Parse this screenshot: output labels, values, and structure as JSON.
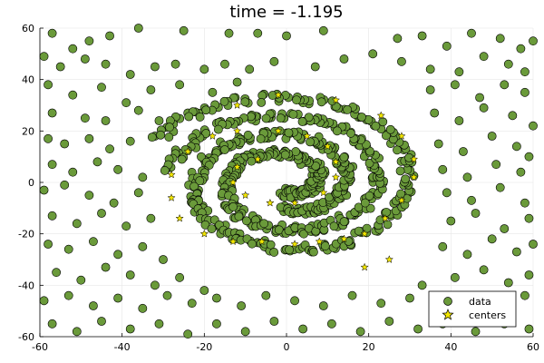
{
  "chart_data": {
    "type": "scatter",
    "title": "time =  -1.195",
    "xlabel": "",
    "ylabel": "",
    "xlim": [
      -60,
      60
    ],
    "ylim": [
      -60,
      60
    ],
    "x_ticks": [
      -60,
      -40,
      -20,
      0,
      20,
      40,
      60
    ],
    "y_ticks": [
      -60,
      -40,
      -20,
      0,
      20,
      40,
      60
    ],
    "grid": true,
    "legend_position": "bottom-right",
    "colors": {
      "data": "#6a9a3a",
      "centers": "#f2e600"
    },
    "series": [
      {
        "name": "data",
        "marker": "circle",
        "noise_points": [
          [
            -57,
            58
          ],
          [
            -52,
            52
          ],
          [
            -48,
            55
          ],
          [
            -43,
            57
          ],
          [
            -36,
            60
          ],
          [
            -25,
            59
          ],
          [
            -14,
            58
          ],
          [
            -7,
            58
          ],
          [
            0,
            57
          ],
          [
            9,
            59
          ],
          [
            27,
            56
          ],
          [
            33,
            57
          ],
          [
            39,
            53
          ],
          [
            45,
            58
          ],
          [
            52,
            56
          ],
          [
            57,
            52
          ],
          [
            60,
            55
          ],
          [
            -59,
            49
          ],
          [
            -55,
            45
          ],
          [
            -49,
            48
          ],
          [
            -44,
            46
          ],
          [
            -38,
            42
          ],
          [
            -32,
            45
          ],
          [
            -27,
            46
          ],
          [
            -20,
            44
          ],
          [
            -15,
            46
          ],
          [
            -9,
            44
          ],
          [
            -3,
            47
          ],
          [
            7,
            45
          ],
          [
            14,
            48
          ],
          [
            21,
            50
          ],
          [
            28,
            47
          ],
          [
            35,
            44
          ],
          [
            42,
            43
          ],
          [
            48,
            49
          ],
          [
            54,
            46
          ],
          [
            58,
            43
          ],
          [
            -58,
            38
          ],
          [
            -52,
            34
          ],
          [
            -45,
            37
          ],
          [
            -39,
            31
          ],
          [
            -33,
            36
          ],
          [
            -26,
            38
          ],
          [
            -18,
            35
          ],
          [
            -12,
            39
          ],
          [
            35,
            36
          ],
          [
            41,
            38
          ],
          [
            47,
            33
          ],
          [
            53,
            38
          ],
          [
            58,
            35
          ],
          [
            -57,
            27
          ],
          [
            -49,
            25
          ],
          [
            -44,
            24
          ],
          [
            -36,
            28
          ],
          [
            -31,
            24
          ],
          [
            -24,
            27
          ],
          [
            -17,
            23
          ],
          [
            36,
            27
          ],
          [
            42,
            24
          ],
          [
            48,
            29
          ],
          [
            55,
            26
          ],
          [
            60,
            22
          ],
          [
            -58,
            17
          ],
          [
            -54,
            15
          ],
          [
            -48,
            17
          ],
          [
            -43,
            13
          ],
          [
            -38,
            16
          ],
          [
            -32,
            18
          ],
          [
            37,
            15
          ],
          [
            43,
            12
          ],
          [
            50,
            18
          ],
          [
            56,
            14
          ],
          [
            59,
            10
          ],
          [
            -57,
            7
          ],
          [
            -52,
            4
          ],
          [
            -46,
            8
          ],
          [
            -41,
            5
          ],
          [
            -35,
            2
          ],
          [
            38,
            5
          ],
          [
            44,
            2
          ],
          [
            51,
            7
          ],
          [
            57,
            4
          ],
          [
            -59,
            -3
          ],
          [
            -54,
            -1
          ],
          [
            -48,
            -5
          ],
          [
            -42,
            -8
          ],
          [
            -36,
            -4
          ],
          [
            39,
            -4
          ],
          [
            45,
            -7
          ],
          [
            52,
            -2
          ],
          [
            58,
            -8
          ],
          [
            -57,
            -13
          ],
          [
            -51,
            -16
          ],
          [
            -45,
            -12
          ],
          [
            -39,
            -17
          ],
          [
            -33,
            -14
          ],
          [
            40,
            -15
          ],
          [
            46,
            -12
          ],
          [
            53,
            -18
          ],
          [
            59,
            -14
          ],
          [
            -58,
            -24
          ],
          [
            -53,
            -26
          ],
          [
            -47,
            -23
          ],
          [
            -41,
            -28
          ],
          [
            -35,
            -25
          ],
          [
            -30,
            -30
          ],
          [
            38,
            -25
          ],
          [
            44,
            -28
          ],
          [
            50,
            -22
          ],
          [
            56,
            -27
          ],
          [
            60,
            -24
          ],
          [
            -56,
            -35
          ],
          [
            -50,
            -38
          ],
          [
            -44,
            -33
          ],
          [
            -38,
            -36
          ],
          [
            -32,
            -40
          ],
          [
            -26,
            -37
          ],
          [
            -20,
            -42
          ],
          [
            33,
            -40
          ],
          [
            41,
            -37
          ],
          [
            48,
            -34
          ],
          [
            54,
            -39
          ],
          [
            59,
            -36
          ],
          [
            -59,
            -46
          ],
          [
            -53,
            -44
          ],
          [
            -47,
            -48
          ],
          [
            -41,
            -45
          ],
          [
            -35,
            -49
          ],
          [
            -29,
            -44
          ],
          [
            -23,
            -47
          ],
          [
            -17,
            -45
          ],
          [
            -11,
            -48
          ],
          [
            -5,
            -44
          ],
          [
            2,
            -46
          ],
          [
            9,
            -48
          ],
          [
            16,
            -44
          ],
          [
            23,
            -47
          ],
          [
            30,
            -45
          ],
          [
            36,
            -49
          ],
          [
            45,
            -46
          ],
          [
            52,
            -48
          ],
          [
            58,
            -44
          ],
          [
            -57,
            -55
          ],
          [
            -51,
            -58
          ],
          [
            -45,
            -54
          ],
          [
            -38,
            -57
          ],
          [
            -31,
            -55
          ],
          [
            -24,
            -59
          ],
          [
            -17,
            -55
          ],
          [
            -10,
            -58
          ],
          [
            -3,
            -54
          ],
          [
            4,
            -57
          ],
          [
            11,
            -55
          ],
          [
            18,
            -58
          ],
          [
            25,
            -54
          ],
          [
            32,
            -57
          ],
          [
            38,
            -55
          ],
          [
            46,
            -58
          ],
          [
            53,
            -55
          ],
          [
            59,
            -57
          ]
        ]
      },
      {
        "name": "centers",
        "marker": "star",
        "points": [
          [
            -12,
            20
          ],
          [
            -2,
            20
          ],
          [
            5,
            18
          ],
          [
            10,
            14
          ],
          [
            12,
            8
          ],
          [
            12,
            2
          ],
          [
            9,
            -4
          ],
          [
            2,
            -8
          ],
          [
            -4,
            -8
          ],
          [
            -10,
            -5
          ],
          [
            -13,
            0
          ],
          [
            -12,
            6
          ],
          [
            -7,
            9
          ],
          [
            -28,
            3
          ],
          [
            -24,
            12
          ],
          [
            -18,
            18
          ],
          [
            -28,
            -6
          ],
          [
            -26,
            -14
          ],
          [
            -20,
            -20
          ],
          [
            -13,
            -23
          ],
          [
            -6,
            -23
          ],
          [
            2,
            -24
          ],
          [
            8,
            -23
          ],
          [
            14,
            -22
          ],
          [
            19,
            -20
          ],
          [
            24,
            -14
          ],
          [
            28,
            -7
          ],
          [
            31,
            2
          ],
          [
            31,
            9
          ],
          [
            28,
            18
          ],
          [
            23,
            26
          ],
          [
            12,
            32
          ],
          [
            -2,
            34
          ],
          [
            -12,
            30
          ],
          [
            19,
            -33
          ],
          [
            25,
            -30
          ]
        ]
      }
    ],
    "spirals": {
      "outer": {
        "a": 0.65,
        "theta_start": 4.6,
        "theta_end": 15.2
      },
      "inner": {
        "a": 0.65,
        "theta_start": 1.5,
        "theta_end": 12.4,
        "rotation": 3.14159
      }
    }
  },
  "legend": {
    "items": [
      {
        "label": "data",
        "marker": "circle"
      },
      {
        "label": "centers",
        "marker": "star"
      }
    ]
  }
}
